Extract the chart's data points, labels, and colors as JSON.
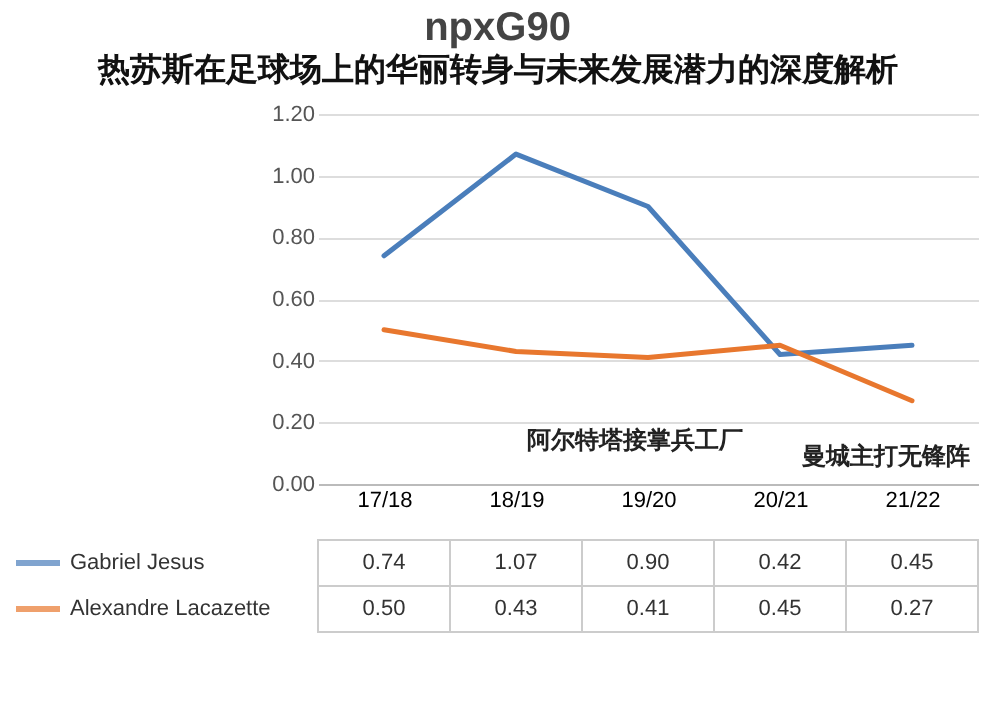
{
  "chart_data": {
    "type": "line",
    "title": "npxG90",
    "subtitle": "热苏斯在足球场上的华丽转身与未来发展潜力的深度解析",
    "categories": [
      "17/18",
      "18/19",
      "19/20",
      "20/21",
      "21/22"
    ],
    "series": [
      {
        "name": "Gabriel Jesus",
        "color": "#4a7ebb",
        "values": [
          0.74,
          1.07,
          0.9,
          0.42,
          0.45
        ],
        "value_labels": [
          "0.74",
          "1.07",
          "0.90",
          "0.42",
          "0.45"
        ]
      },
      {
        "name": "Alexandre Lacazette",
        "color": "#e8772e",
        "values": [
          0.5,
          0.43,
          0.41,
          0.45,
          0.27
        ],
        "value_labels": [
          "0.50",
          "0.43",
          "0.41",
          "0.45",
          "0.27"
        ]
      }
    ],
    "ylim": [
      0,
      1.2
    ],
    "yticks": [
      {
        "value": 0,
        "label": "0.00"
      },
      {
        "value": 0.2,
        "label": "0.20"
      },
      {
        "value": 0.4,
        "label": "0.40"
      },
      {
        "value": 0.6,
        "label": "0.60"
      },
      {
        "value": 0.8,
        "label": "0.80"
      },
      {
        "value": 1.0,
        "label": "1.00"
      },
      {
        "value": 1.2,
        "label": "1.20"
      }
    ],
    "annotations": [
      "阿尔特塔接掌兵工厂",
      "曼城主打无锋阵"
    ],
    "grid": "y",
    "legend": "bottom",
    "marker": "none",
    "line_style": "solid"
  }
}
